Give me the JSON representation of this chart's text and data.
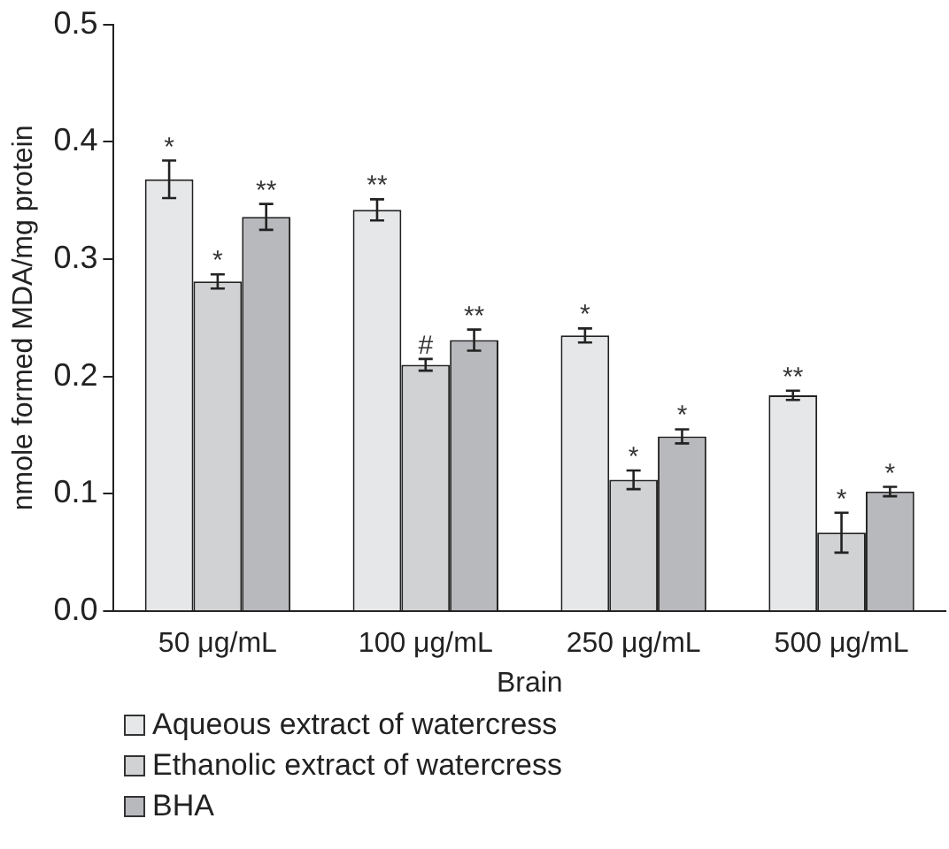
{
  "chart_data": {
    "type": "bar",
    "xlabel": "Brain",
    "ylabel": "nmole formed MDA/mg protein",
    "categories": [
      "50 μg/mL",
      "100 μg/mL",
      "250 μg/mL",
      "500 μg/mL"
    ],
    "series": [
      {
        "name": "Aqueous extract of watercress",
        "color": "#e6e7e8",
        "values": [
          0.368,
          0.342,
          0.235,
          0.184
        ],
        "errors": [
          0.016,
          0.009,
          0.006,
          0.004
        ],
        "value_labels": [
          "*",
          "**",
          "*",
          "**"
        ]
      },
      {
        "name": "Ethanolic extract of watercress",
        "color": "#d1d2d4",
        "values": [
          0.281,
          0.21,
          0.112,
          0.067
        ],
        "errors": [
          0.006,
          0.005,
          0.008,
          0.017
        ],
        "value_labels": [
          "*",
          "#",
          "*",
          "*"
        ]
      },
      {
        "name": "BHA",
        "color": "#b8b9bc",
        "values": [
          0.336,
          0.231,
          0.149,
          0.102
        ],
        "errors": [
          0.011,
          0.009,
          0.006,
          0.004
        ],
        "value_labels": [
          "**",
          "**",
          "*",
          "*"
        ]
      }
    ],
    "ylim": [
      0,
      0.5
    ],
    "yticks": [
      {
        "value": 0,
        "label": "0.0"
      },
      0.1,
      0.2,
      0.3,
      0.4,
      0.5
    ],
    "grid": false,
    "legend": "bottom left"
  }
}
